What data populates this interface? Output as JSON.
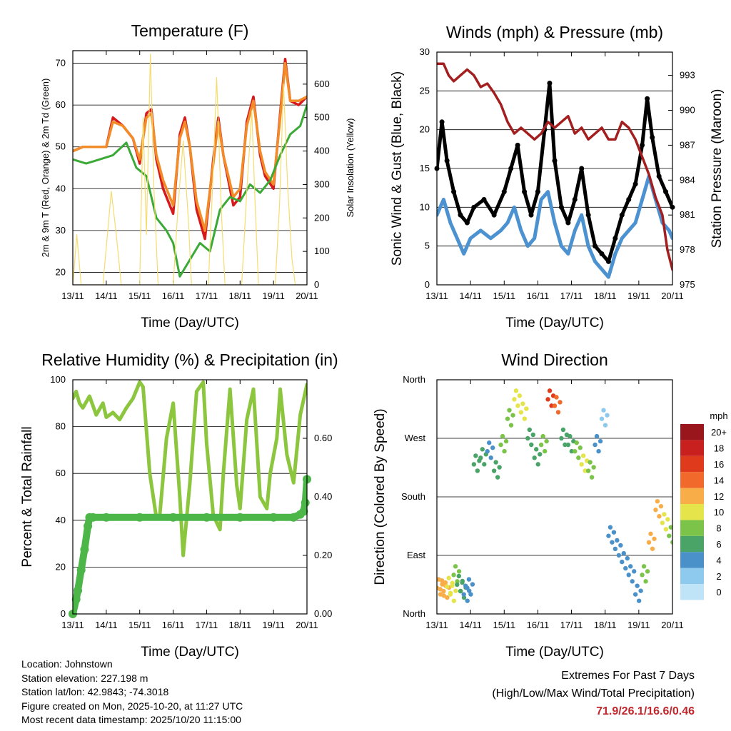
{
  "chart_data": [
    {
      "type": "line",
      "title": "Temperature (F)",
      "xlabel": "Time (Day/UTC)",
      "ylabel": "2m & 9m T (Red, Orange) & 2m Td (Green)",
      "y2label": "Solar Insolation (Yellow)",
      "x_ticks": [
        "13/11",
        "14/11",
        "15/11",
        "16/11",
        "17/11",
        "18/11",
        "19/11",
        "20/11"
      ],
      "ylim": [
        17,
        73
      ],
      "y_ticks": [
        20,
        30,
        40,
        50,
        60,
        70
      ],
      "y2lim": [
        0,
        700
      ],
      "y2_ticks": [
        0,
        100,
        200,
        300,
        400,
        500,
        600
      ],
      "series": [
        {
          "name": "2m T",
          "color": "#d7191c",
          "x": [
            0,
            0.3,
            0.6,
            1.0,
            1.2,
            1.5,
            1.8,
            2.0,
            2.2,
            2.35,
            2.5,
            2.7,
            3.0,
            3.2,
            3.35,
            3.5,
            3.7,
            3.95,
            4.2,
            4.35,
            4.5,
            4.8,
            5.0,
            5.2,
            5.4,
            5.6,
            5.75,
            6.0,
            6.2,
            6.35,
            6.5,
            6.75,
            7.0
          ],
          "y": [
            49,
            50,
            50,
            50,
            57,
            55,
            52,
            46,
            58,
            59,
            47,
            40,
            34,
            53,
            57,
            50,
            35,
            28,
            47,
            57,
            48,
            36,
            38,
            56,
            62,
            48,
            43,
            40,
            58,
            71,
            61,
            60,
            62
          ]
        },
        {
          "name": "9m T",
          "color": "#f28c28",
          "x": [
            0,
            0.3,
            0.6,
            1.0,
            1.2,
            1.5,
            1.8,
            2.0,
            2.2,
            2.35,
            2.5,
            2.7,
            3.0,
            3.2,
            3.35,
            3.5,
            3.7,
            3.95,
            4.2,
            4.35,
            4.5,
            4.8,
            5.0,
            5.2,
            5.4,
            5.6,
            5.75,
            6.0,
            6.2,
            6.35,
            6.5,
            6.75,
            7.0
          ],
          "y": [
            49,
            50,
            50,
            50,
            56,
            55,
            52,
            47,
            57,
            58,
            48,
            42,
            36,
            52,
            56,
            50,
            37,
            30,
            46,
            56,
            48,
            38,
            40,
            55,
            61,
            49,
            44,
            41,
            57,
            70,
            61,
            61,
            62
          ]
        },
        {
          "name": "2m Td",
          "color": "#3aa935",
          "x": [
            0,
            0.4,
            0.8,
            1.2,
            1.6,
            1.9,
            2.2,
            2.5,
            2.8,
            3.0,
            3.2,
            3.5,
            3.8,
            4.1,
            4.4,
            4.7,
            5.0,
            5.3,
            5.6,
            5.9,
            6.2,
            6.5,
            6.8,
            7.0
          ],
          "y": [
            47,
            46,
            47,
            48,
            51,
            45,
            43,
            33,
            30,
            27,
            19,
            23,
            27,
            25,
            35,
            38,
            37,
            41,
            39,
            42,
            48,
            53,
            55,
            60
          ]
        },
        {
          "name": "Solar Insolation",
          "color": "#f5dc6e",
          "axis": "y2",
          "x": [
            0,
            0.05,
            0.12,
            0.25,
            0.9,
            1.15,
            1.3,
            1.45,
            2.0,
            2.1,
            2.2,
            2.32,
            2.42,
            2.55,
            3.0,
            3.15,
            3.3,
            3.45,
            3.55,
            4.05,
            4.18,
            4.3,
            4.45,
            4.55,
            5.05,
            5.2,
            5.35,
            5.45,
            5.55,
            6.05,
            6.18,
            6.3,
            6.42,
            6.55,
            6.65,
            7.0
          ],
          "y": [
            0,
            60,
            150,
            0,
            0,
            280,
            150,
            0,
            0,
            500,
            150,
            690,
            300,
            0,
            0,
            240,
            430,
            200,
            0,
            0,
            300,
            620,
            200,
            0,
            0,
            280,
            520,
            240,
            0,
            0,
            240,
            600,
            300,
            80,
            0,
            0
          ]
        }
      ]
    },
    {
      "type": "line",
      "title": "Winds (mph) & Pressure (mb)",
      "xlabel": "Time (Day/UTC)",
      "ylabel": "Sonic Wind & Gust (Blue, Black)",
      "y2label": "Station Pressure (Maroon)",
      "x_ticks": [
        "13/11",
        "14/11",
        "15/11",
        "16/11",
        "17/11",
        "18/11",
        "19/11",
        "20/11"
      ],
      "ylim": [
        0,
        30
      ],
      "y_ticks": [
        0,
        5,
        10,
        15,
        20,
        25,
        30
      ],
      "y2lim": [
        975,
        995
      ],
      "y2_ticks": [
        975,
        978,
        981,
        984,
        987,
        990,
        993
      ],
      "series": [
        {
          "name": "Sonic Wind",
          "color": "#4c92d1",
          "x": [
            0,
            0.2,
            0.4,
            0.6,
            0.8,
            1.0,
            1.3,
            1.6,
            1.9,
            2.1,
            2.3,
            2.5,
            2.7,
            2.9,
            3.1,
            3.3,
            3.5,
            3.7,
            3.9,
            4.1,
            4.3,
            4.5,
            4.7,
            4.9,
            5.1,
            5.3,
            5.5,
            5.7,
            5.9,
            6.1,
            6.3,
            6.5,
            6.7,
            6.9,
            7.0
          ],
          "y": [
            9,
            11,
            8,
            6,
            4,
            6,
            7,
            6,
            7,
            8,
            10,
            7,
            5,
            6,
            11,
            12,
            8,
            5,
            4,
            7,
            9,
            5,
            3,
            2,
            1,
            4,
            6,
            7,
            8,
            11,
            14,
            11,
            8,
            7,
            6
          ]
        },
        {
          "name": "Gust",
          "color": "#000000",
          "x": [
            0,
            0.15,
            0.3,
            0.5,
            0.7,
            0.9,
            1.1,
            1.4,
            1.7,
            2.0,
            2.2,
            2.4,
            2.6,
            2.8,
            3.0,
            3.2,
            3.35,
            3.5,
            3.7,
            3.9,
            4.1,
            4.3,
            4.5,
            4.7,
            4.9,
            5.1,
            5.3,
            5.5,
            5.7,
            5.9,
            6.1,
            6.25,
            6.4,
            6.6,
            6.8,
            7.0
          ],
          "y": [
            15,
            21,
            16,
            12,
            9,
            8,
            10,
            11,
            9,
            12,
            15,
            18,
            12,
            9,
            12,
            20,
            26,
            16,
            10,
            8,
            11,
            15,
            9,
            5,
            4,
            3,
            6,
            9,
            11,
            13,
            18,
            24,
            19,
            14,
            12,
            10
          ]
        },
        {
          "name": "Station Pressure",
          "color": "#a31f1f",
          "axis": "y2",
          "x": [
            0,
            0.2,
            0.35,
            0.5,
            0.7,
            0.9,
            1.1,
            1.3,
            1.5,
            1.7,
            1.9,
            2.1,
            2.3,
            2.5,
            2.7,
            2.9,
            3.1,
            3.3,
            3.5,
            3.7,
            3.9,
            4.1,
            4.3,
            4.5,
            4.7,
            4.9,
            5.1,
            5.3,
            5.5,
            5.7,
            5.9,
            6.1,
            6.3,
            6.5,
            6.7,
            6.85,
            7.0
          ],
          "y": [
            994,
            994,
            993,
            992.5,
            993,
            993.5,
            993,
            992,
            992.3,
            991.5,
            990.5,
            989,
            988,
            988.5,
            988,
            987.5,
            988,
            989,
            988.5,
            989,
            989.5,
            988,
            988.5,
            987.5,
            988,
            988.5,
            987.5,
            987.5,
            989,
            988.5,
            987.5,
            986,
            984.5,
            982.5,
            981,
            978,
            976.3
          ]
        }
      ]
    },
    {
      "type": "line",
      "title": "Relative Humidity (%) & Precipitation (in)",
      "xlabel": "Time (Day/UTC)",
      "ylabel": "Percent & Total Rainfall",
      "x_ticks": [
        "13/11",
        "14/11",
        "15/11",
        "16/11",
        "17/11",
        "18/11",
        "19/11",
        "20/11"
      ],
      "ylim": [
        0,
        100
      ],
      "y_ticks": [
        0,
        20,
        40,
        60,
        80,
        100
      ],
      "y2lim": [
        0,
        0.8
      ],
      "y2_ticks": [
        "0.00",
        "0.20",
        "0.40",
        "0.60"
      ],
      "series": [
        {
          "name": "Relative Humidity",
          "color": "#8cc63f",
          "x": [
            0,
            0.1,
            0.2,
            0.3,
            0.5,
            0.7,
            0.9,
            1.0,
            1.2,
            1.4,
            1.6,
            1.8,
            2.0,
            2.1,
            2.3,
            2.5,
            2.6,
            2.8,
            3.0,
            3.2,
            3.3,
            3.5,
            3.7,
            3.9,
            4.0,
            4.2,
            4.4,
            4.5,
            4.7,
            4.9,
            5.0,
            5.2,
            5.4,
            5.6,
            5.8,
            5.9,
            6.1,
            6.2,
            6.4,
            6.6,
            6.8,
            7.0
          ],
          "y": [
            92,
            95,
            90,
            88,
            93,
            85,
            90,
            84,
            86,
            83,
            88,
            92,
            99,
            97,
            60,
            41,
            42,
            75,
            90,
            50,
            25,
            56,
            95,
            99,
            73,
            42,
            36,
            60,
            96,
            55,
            45,
            83,
            96,
            50,
            45,
            60,
            75,
            96,
            68,
            56,
            85,
            98
          ]
        },
        {
          "name": "Total Precipitation",
          "color": "#4cb748",
          "axis": "y2",
          "x": [
            0,
            0.1,
            0.15,
            0.25,
            0.35,
            0.45,
            0.5,
            0.6,
            1.0,
            2.0,
            3.0,
            4.0,
            5.0,
            6.0,
            6.6,
            6.8,
            6.9,
            6.95,
            7.0
          ],
          "y": [
            0,
            0.05,
            0.08,
            0.15,
            0.22,
            0.3,
            0.33,
            0.33,
            0.33,
            0.33,
            0.33,
            0.33,
            0.33,
            0.33,
            0.33,
            0.34,
            0.35,
            0.38,
            0.46
          ]
        }
      ]
    },
    {
      "type": "scatter",
      "title": "Wind Direction",
      "xlabel": "Time (Day/UTC)",
      "ylabel": "Direction (Colored By Speed)",
      "x_ticks": [
        "13/11",
        "14/11",
        "15/11",
        "16/11",
        "17/11",
        "18/11",
        "19/11",
        "20/11"
      ],
      "y_ticks": [
        "North",
        "East",
        "South",
        "West",
        "North"
      ],
      "ylim": [
        0,
        360
      ],
      "legend_title": "mph",
      "legend_labels": [
        "0",
        "2",
        "4",
        "6",
        "8",
        "10",
        "12",
        "14",
        "16",
        "18",
        "20+"
      ],
      "legend_colors": [
        "#bfe4f7",
        "#8ec9ee",
        "#4a90c9",
        "#4aa367",
        "#7bc449",
        "#e5e44a",
        "#f9ad49",
        "#f26a2b",
        "#e03a1c",
        "#c8201e",
        "#99161d"
      ],
      "series": [
        {
          "name": "Wind direction",
          "x": [
            0,
            0.1,
            0.2,
            0.3,
            0.4,
            0.5,
            0.6,
            0.7,
            0.8,
            0.9,
            1.1,
            1.3,
            1.5,
            1.7,
            1.9,
            2.1,
            2.3,
            2.5,
            2.7,
            2.9,
            3.1,
            3.3,
            3.5,
            3.7,
            3.9,
            4.1,
            4.3,
            4.5,
            4.7,
            4.9,
            5.1,
            5.3,
            5.5,
            5.7,
            5.9,
            6.1,
            6.3,
            6.5,
            6.7,
            6.9
          ],
          "y": [
            40,
            38,
            35,
            42,
            30,
            60,
            45,
            35,
            30,
            40,
            230,
            240,
            250,
            220,
            260,
            300,
            330,
            310,
            270,
            240,
            260,
            330,
            320,
            270,
            260,
            250,
            230,
            220,
            260,
            300,
            120,
            100,
            80,
            60,
            30,
            60,
            110,
            160,
            140,
            120
          ],
          "speed": [
            12,
            12,
            11,
            10,
            9,
            8,
            6,
            5,
            4,
            3,
            6,
            5,
            4,
            6,
            7,
            8,
            10,
            9,
            6,
            5,
            8,
            16,
            14,
            6,
            5,
            7,
            9,
            8,
            3,
            2,
            3,
            4,
            4,
            3,
            4,
            8,
            12,
            11,
            9,
            7
          ]
        }
      ]
    }
  ],
  "info": {
    "location": "Location: Johnstown",
    "elevation": "Station elevation: 227.198 m",
    "latlon": "Station lat/lon: 42.9843; -74.3018",
    "created": "Figure created on Mon, 2025-10-20, at 11:27 UTC",
    "recent": "Most recent data timestamp: 2025/10/20 11:15:00"
  },
  "extremes": {
    "heading": "Extremes For Past 7 Days",
    "subheading": "(High/Low/Max Wind/Total Precipitation)",
    "values": "71.9/26.1/16.6/0.46"
  }
}
